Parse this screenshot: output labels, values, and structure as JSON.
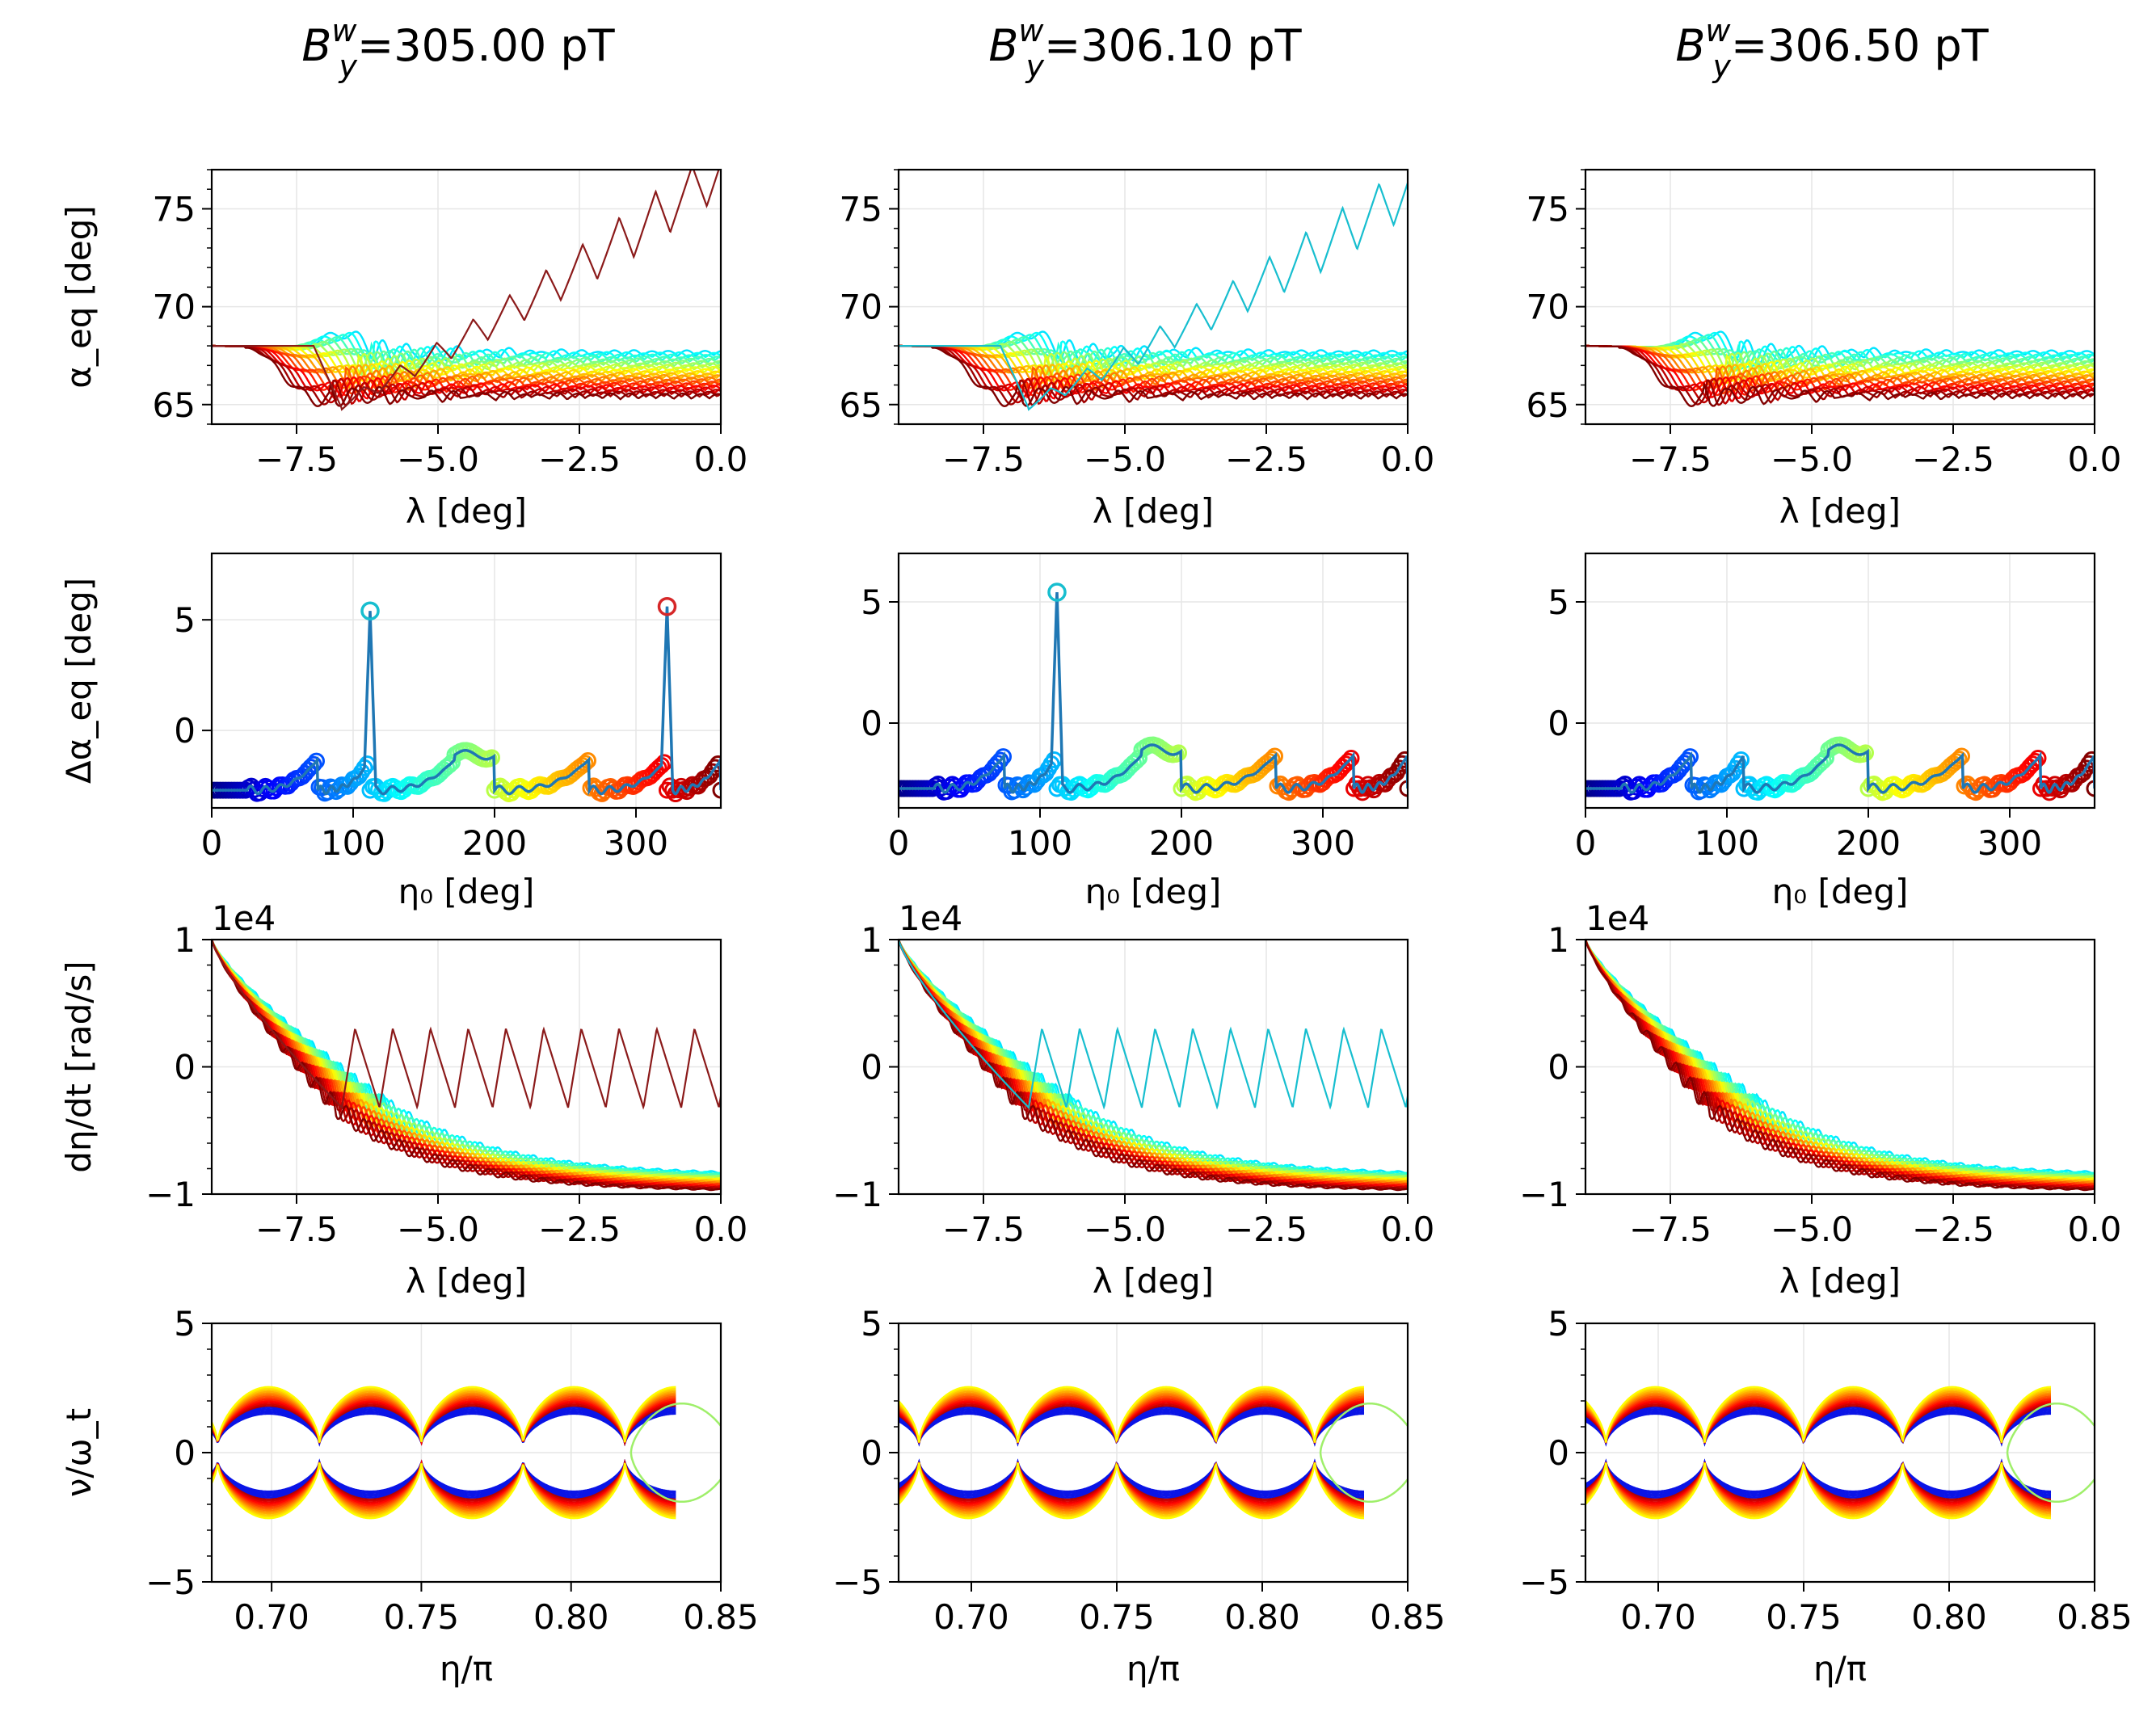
{
  "columns": [
    {
      "title_main": "B",
      "title_sup": "w",
      "title_sub": "y",
      "title_rest": "=305.00 pT"
    },
    {
      "title_main": "B",
      "title_sup": "w",
      "title_sub": "y",
      "title_rest": "=306.10 pT"
    },
    {
      "title_main": "B",
      "title_sup": "w",
      "title_sub": "y",
      "title_rest": "=306.50 pT"
    }
  ],
  "rows": [
    {
      "ylabel": "α_eq [deg]",
      "xlabel": "λ [deg]"
    },
    {
      "ylabel": "Δα_eq [deg]",
      "xlabel": "η₀ [deg]"
    },
    {
      "ylabel": "dη/dt [rad/s]",
      "xlabel": "λ [deg]",
      "offset": "1e4"
    },
    {
      "ylabel": "ν/ω_t",
      "xlabel": "η/π"
    }
  ],
  "chart_data": [
    {
      "row": 0,
      "type": "line",
      "xlabel": "λ [deg]",
      "ylabel": "α_eq [deg]",
      "xlim": [
        -9,
        0
      ],
      "ylim": [
        64,
        77
      ],
      "xticks": [
        "−7.5",
        "−5.0",
        "−2.5",
        "0.0"
      ],
      "yticks": [
        "65",
        "70",
        "75"
      ],
      "series_description_free": false,
      "series": [
        {
          "panel": 1,
          "color": "#8b1a1a",
          "escaping": true,
          "start_x": -9,
          "start_y": 68,
          "end_y_range": [
            72,
            77
          ]
        },
        {
          "panel": 2,
          "color": "#17becf",
          "escaping": true,
          "start_x": -9,
          "start_y": 68,
          "end_y_range": [
            71,
            77
          ]
        },
        {
          "panel": 3,
          "color": null,
          "escaping": false,
          "start_x": -9,
          "start_y": 68,
          "end_y_range": [
            65,
            67.5
          ]
        }
      ]
    },
    {
      "row": 1,
      "type": "scatter",
      "xlabel": "η₀ [deg]",
      "ylabel": "Δα_eq [deg]",
      "xlim": [
        0,
        360
      ],
      "ylims": [
        [
          -3.5,
          8
        ],
        [
          -3.5,
          7
        ],
        [
          -3.5,
          7
        ]
      ],
      "xticks": [
        "0",
        "100",
        "200",
        "300"
      ],
      "yticks": [
        "0",
        "5"
      ],
      "panels": [
        {
          "peaks": [
            {
              "x": 112,
              "y": 5.4,
              "color": "#17becf"
            },
            {
              "x": 322,
              "y": 5.6,
              "color": "#d62728"
            }
          ]
        },
        {
          "peaks": [
            {
              "x": 112,
              "y": 5.4,
              "color": "#17becf"
            }
          ]
        },
        {
          "peaks": []
        }
      ]
    },
    {
      "row": 2,
      "type": "line",
      "xlabel": "λ [deg]",
      "ylabel": "dη/dt [rad/s]",
      "xlim": [
        -9,
        0
      ],
      "ylim": [
        -1,
        1
      ],
      "offset": "1e4",
      "xticks": [
        "−7.5",
        "−5.0",
        "−2.5",
        "0.0"
      ],
      "yticks": [
        "−1",
        "0",
        "1"
      ]
    },
    {
      "row": 3,
      "type": "line",
      "xlabel": "η/π",
      "ylabel": "ν/ω_t",
      "xlims": [
        [
          0.68,
          0.85
        ],
        [
          0.675,
          0.85
        ],
        [
          0.675,
          0.85
        ]
      ],
      "ylim": [
        -5,
        5
      ],
      "xticks": [
        "0.70",
        "0.75",
        "0.80",
        "0.85"
      ],
      "yticks": [
        "−5",
        "0",
        "5"
      ]
    }
  ]
}
